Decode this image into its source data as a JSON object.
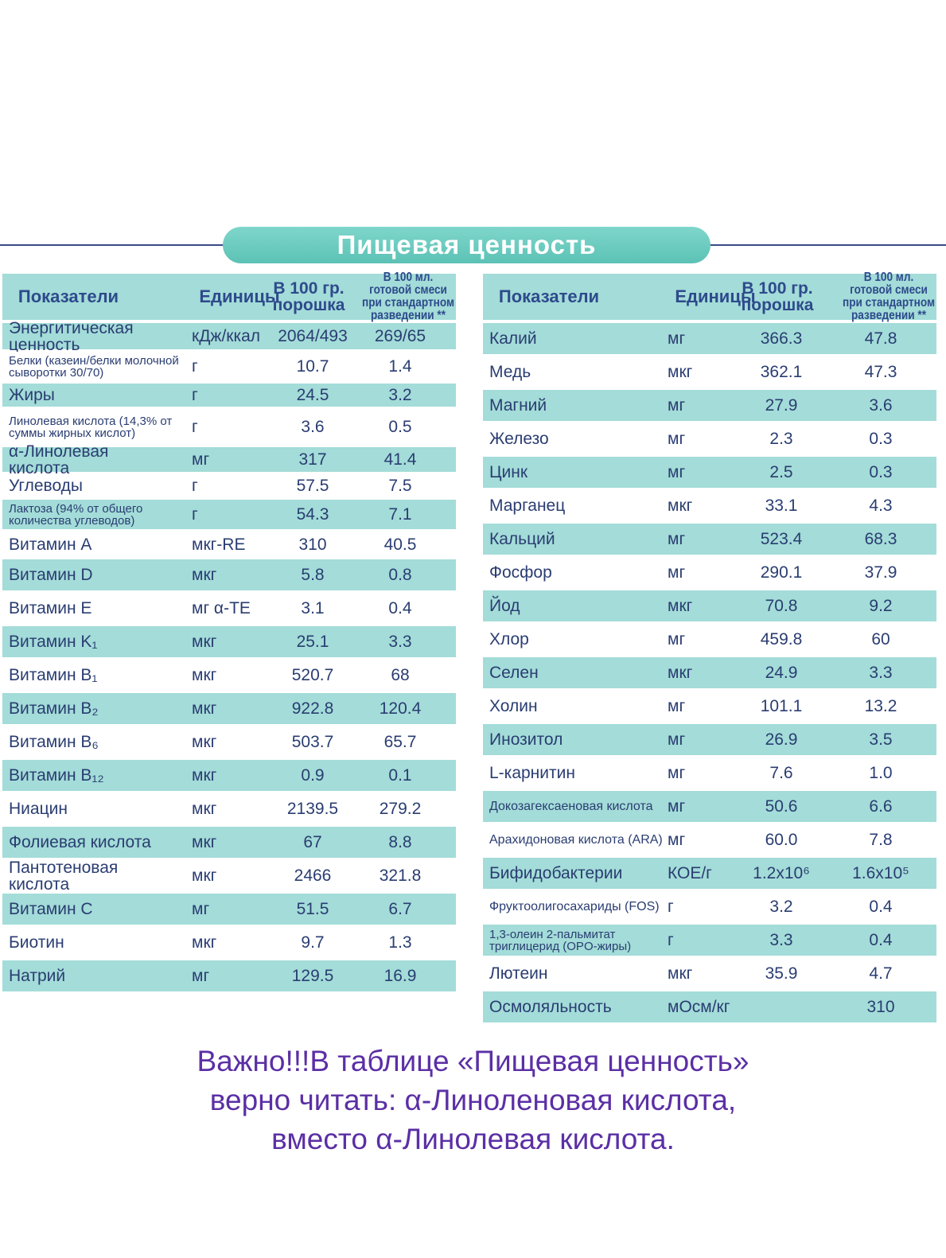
{
  "title": "Пищевая ценность",
  "left_table": {
    "header": [
      "Показатели",
      "Единицы",
      "В 100 гр. порошка",
      "В 100 мл. готовой смеси при стандартном разведении **"
    ],
    "rows": [
      {
        "name": "Энергитическая ценность",
        "unit": "кДж/ккал",
        "per_100g": "2064/493",
        "per_100ml": "269/65"
      },
      {
        "name": "Белки (казеин/белки молочной сыворотки 30/70)",
        "unit": "г",
        "per_100g": "10.7",
        "per_100ml": "1.4"
      },
      {
        "name": "Жиры",
        "unit": "г",
        "per_100g": "24.5",
        "per_100ml": "3.2"
      },
      {
        "name": "Линолевая кислота (14,3% от суммы жирных кислот)",
        "unit": "г",
        "per_100g": "3.6",
        "per_100ml": "0.5"
      },
      {
        "name": "α-Линолевая кислота",
        "unit": "мг",
        "per_100g": "317",
        "per_100ml": "41.4"
      },
      {
        "name": "Углеводы",
        "unit": "г",
        "per_100g": "57.5",
        "per_100ml": "7.5"
      },
      {
        "name": "Лактоза (94% от общего количества углеводов)",
        "unit": "г",
        "per_100g": "54.3",
        "per_100ml": "7.1"
      },
      {
        "name": "Витамин A",
        "unit": "мкг-RE",
        "per_100g": "310",
        "per_100ml": "40.5"
      },
      {
        "name": "Витамин D",
        "unit": "мкг",
        "per_100g": "5.8",
        "per_100ml": "0.8"
      },
      {
        "name": "Витамин E",
        "unit": "мг α-TE",
        "per_100g": "3.1",
        "per_100ml": "0.4"
      },
      {
        "name": "Витамин K₁",
        "unit": "мкг",
        "per_100g": "25.1",
        "per_100ml": "3.3"
      },
      {
        "name": "Витамин B₁",
        "unit": "мкг",
        "per_100g": "520.7",
        "per_100ml": "68"
      },
      {
        "name": "Витамин B₂",
        "unit": "мкг",
        "per_100g": "922.8",
        "per_100ml": "120.4"
      },
      {
        "name": "Витамин B₆",
        "unit": "мкг",
        "per_100g": "503.7",
        "per_100ml": "65.7"
      },
      {
        "name": "Витамин B₁₂",
        "unit": "мкг",
        "per_100g": "0.9",
        "per_100ml": "0.1"
      },
      {
        "name": "Ниацин",
        "unit": "мкг",
        "per_100g": "2139.5",
        "per_100ml": "279.2"
      },
      {
        "name": "Фолиевая кислота",
        "unit": "мкг",
        "per_100g": "67",
        "per_100ml": "8.8"
      },
      {
        "name": "Пантотеновая кислота",
        "unit": "мкг",
        "per_100g": "2466",
        "per_100ml": "321.8"
      },
      {
        "name": "Витамин C",
        "unit": "мг",
        "per_100g": "51.5",
        "per_100ml": "6.7"
      },
      {
        "name": "Биотин",
        "unit": "мкг",
        "per_100g": "9.7",
        "per_100ml": "1.3"
      },
      {
        "name": "Натрий",
        "unit": "мг",
        "per_100g": "129.5",
        "per_100ml": "16.9"
      }
    ]
  },
  "right_table": {
    "header": [
      "Показатели",
      "Единицы",
      "В 100 гр. порошка",
      "В 100 мл. готовой смеси при стандартном разведении **"
    ],
    "rows": [
      {
        "name": "Калий",
        "unit": "мг",
        "per_100g": "366.3",
        "per_100ml": "47.8"
      },
      {
        "name": "Медь",
        "unit": "мкг",
        "per_100g": "362.1",
        "per_100ml": "47.3"
      },
      {
        "name": "Магний",
        "unit": "мг",
        "per_100g": "27.9",
        "per_100ml": "3.6"
      },
      {
        "name": "Железо",
        "unit": "мг",
        "per_100g": "2.3",
        "per_100ml": "0.3"
      },
      {
        "name": "Цинк",
        "unit": "мг",
        "per_100g": "2.5",
        "per_100ml": "0.3"
      },
      {
        "name": "Марганец",
        "unit": "мкг",
        "per_100g": "33.1",
        "per_100ml": "4.3"
      },
      {
        "name": "Кальций",
        "unit": "мг",
        "per_100g": "523.4",
        "per_100ml": "68.3"
      },
      {
        "name": "Фосфор",
        "unit": "мг",
        "per_100g": "290.1",
        "per_100ml": "37.9"
      },
      {
        "name": "Йод",
        "unit": "мкг",
        "per_100g": "70.8",
        "per_100ml": "9.2"
      },
      {
        "name": "Хлор",
        "unit": "мг",
        "per_100g": "459.8",
        "per_100ml": "60"
      },
      {
        "name": "Селен",
        "unit": "мкг",
        "per_100g": "24.9",
        "per_100ml": "3.3"
      },
      {
        "name": "Холин",
        "unit": "мг",
        "per_100g": "101.1",
        "per_100ml": "13.2"
      },
      {
        "name": "Инозитол",
        "unit": "мг",
        "per_100g": "26.9",
        "per_100ml": "3.5"
      },
      {
        "name": "L-карнитин",
        "unit": "мг",
        "per_100g": "7.6",
        "per_100ml": "1.0"
      },
      {
        "name": "Докозагексаеновая кислота",
        "unit": "мг",
        "per_100g": "50.6",
        "per_100ml": "6.6"
      },
      {
        "name": "Арахидоновая кислота (ARA)",
        "unit": "мг",
        "per_100g": "60.0",
        "per_100ml": "7.8"
      },
      {
        "name": "Бифидобактерии",
        "unit": "КОЕ/г",
        "per_100g": "1.2x10⁶",
        "per_100ml": "1.6x10⁵"
      },
      {
        "name": "Фруктоолигосахариды (FOS)",
        "unit": "г",
        "per_100g": "3.2",
        "per_100ml": "0.4"
      },
      {
        "name": "1,3-олеин 2-пальмитат триглицерид (OPO-жиры)",
        "unit": "г",
        "per_100g": "3.3",
        "per_100ml": "0.4"
      },
      {
        "name": "Лютеин",
        "unit": "мкг",
        "per_100g": "35.9",
        "per_100ml": "4.7"
      },
      {
        "name": "Осмоляльность",
        "unit": "мОсм/кг",
        "per_100ml": "310"
      }
    ]
  },
  "note": [
    "Важно!!!В таблице «Пищевая ценность»",
    "верно читать: α-Линоленовая кислота,",
    "вместо α-Линолевая кислота."
  ]
}
